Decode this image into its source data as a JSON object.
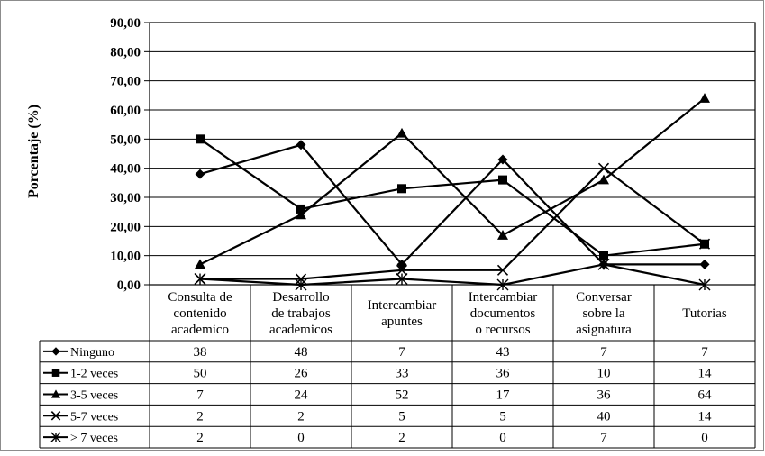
{
  "chart_data": {
    "type": "line",
    "ylabel": "Porcentaje (%)",
    "ylim": [
      0,
      90
    ],
    "yticks": [
      "0,00",
      "10,00",
      "20,00",
      "30,00",
      "40,00",
      "50,00",
      "60,00",
      "70,00",
      "80,00",
      "90,00"
    ],
    "grid": true,
    "legend": "data-table-left",
    "categories": [
      "Consulta de contenido academico",
      "Desarrollo de trabajos academicos",
      "Intercambiar apuntes",
      "Intercambiar documentos o recursos",
      "Conversar sobre la asignatura",
      "Tutorias"
    ],
    "category_lines": [
      [
        "Consulta de",
        "contenido",
        "academico"
      ],
      [
        "Desarrollo",
        "de trabajos",
        "academicos"
      ],
      [
        "Intercambiar",
        "apuntes"
      ],
      [
        "Intercambiar",
        "documentos",
        "o recursos"
      ],
      [
        "Conversar",
        "sobre la",
        "asignatura"
      ],
      [
        "Tutorias"
      ]
    ],
    "series": [
      {
        "name": "Ninguno",
        "marker": "diamond",
        "values": [
          38,
          48,
          7,
          43,
          7,
          7
        ],
        "labels": [
          "38",
          "48",
          "7",
          "43",
          "7",
          "7"
        ]
      },
      {
        "name": "1-2 veces",
        "marker": "square",
        "values": [
          50,
          26,
          33,
          36,
          10,
          14
        ],
        "labels": [
          "50",
          "26",
          "33",
          "36",
          "10",
          "14"
        ]
      },
      {
        "name": "3-5 veces",
        "marker": "triangle",
        "values": [
          7,
          24,
          52,
          17,
          36,
          64
        ],
        "labels": [
          "7",
          "24",
          "52",
          "17",
          "36",
          "64"
        ]
      },
      {
        "name": "5-7 veces",
        "marker": "x",
        "values": [
          2,
          2,
          5,
          5,
          40,
          14
        ],
        "labels": [
          "2",
          "2",
          "5",
          "5",
          "40",
          "14"
        ]
      },
      {
        "name": "> 7 veces",
        "marker": "star",
        "values": [
          2,
          0,
          2,
          0,
          7,
          0
        ],
        "labels": [
          "2",
          "0",
          "2",
          "0",
          "7",
          "0"
        ]
      }
    ]
  }
}
